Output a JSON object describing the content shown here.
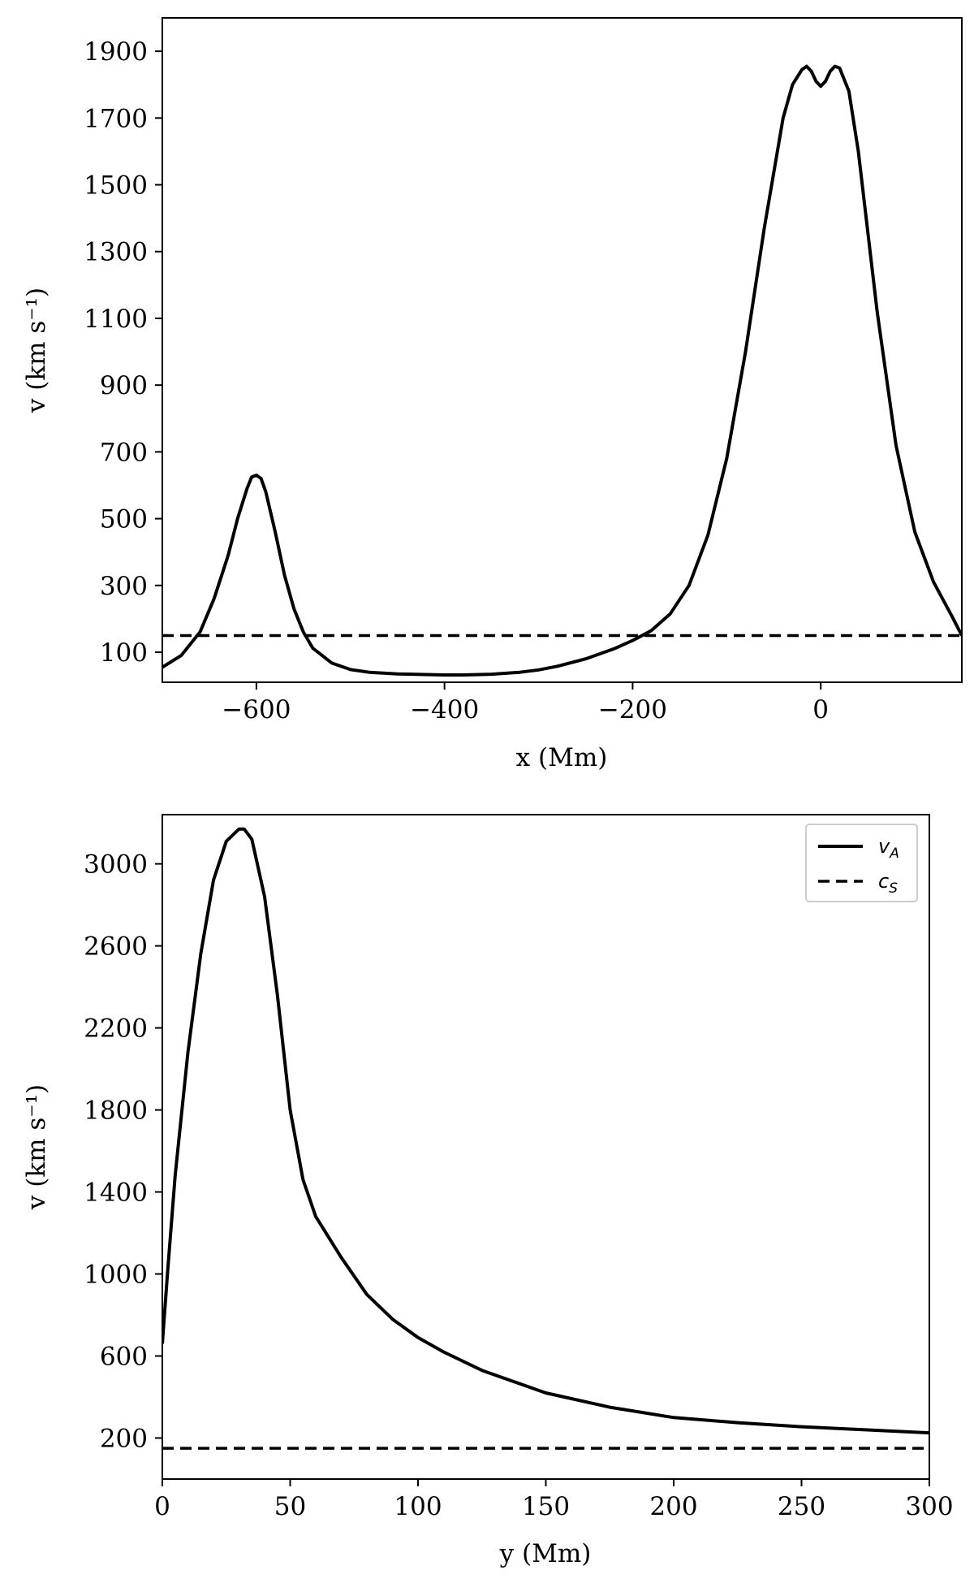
{
  "chart_data": [
    {
      "type": "line",
      "xlabel": "x (Mm)",
      "ylabel": "v (km s⁻¹)",
      "xlim": [
        -700,
        150
      ],
      "ylim": [
        10,
        2000
      ],
      "xticks": [
        -600,
        -400,
        -200,
        0
      ],
      "xtick_labels": [
        "−600",
        "−400",
        "−200",
        "0"
      ],
      "yticks": [
        100,
        300,
        500,
        700,
        900,
        1100,
        1300,
        1500,
        1700,
        1900
      ],
      "ytick_labels": [
        "100",
        "300",
        "500",
        "700",
        "900",
        "1100",
        "1300",
        "1500",
        "1700",
        "1900"
      ],
      "grid": false,
      "series": [
        {
          "style": "solid",
          "x": [
            -700,
            -680,
            -660,
            -645,
            -630,
            -620,
            -610,
            -605,
            -600,
            -595,
            -590,
            -580,
            -570,
            -560,
            -550,
            -540,
            -520,
            -500,
            -480,
            -450,
            -420,
            -400,
            -380,
            -350,
            -320,
            -300,
            -280,
            -250,
            -220,
            -200,
            -180,
            -160,
            -140,
            -120,
            -100,
            -80,
            -60,
            -40,
            -30,
            -20,
            -15,
            -10,
            -5,
            0,
            5,
            10,
            15,
            20,
            30,
            40,
            60,
            80,
            100,
            120,
            140,
            150
          ],
          "y": [
            55,
            90,
            160,
            260,
            390,
            500,
            590,
            625,
            630,
            620,
            580,
            460,
            330,
            230,
            160,
            112,
            68,
            48,
            40,
            35,
            33,
            32,
            32,
            34,
            40,
            47,
            58,
            80,
            110,
            135,
            165,
            215,
            300,
            450,
            680,
            1000,
            1370,
            1700,
            1800,
            1845,
            1855,
            1840,
            1810,
            1795,
            1810,
            1840,
            1855,
            1850,
            1780,
            1600,
            1120,
            720,
            460,
            310,
            205,
            150
          ]
        },
        {
          "style": "dashed",
          "x": [
            -700,
            150
          ],
          "y": [
            150,
            150
          ]
        }
      ]
    },
    {
      "type": "line",
      "xlabel": "y (Mm)",
      "ylabel": "v (km s⁻¹)",
      "xlim": [
        0,
        300
      ],
      "ylim": [
        0,
        3240
      ],
      "xticks": [
        0,
        50,
        100,
        150,
        200,
        250,
        300
      ],
      "xtick_labels": [
        "0",
        "50",
        "100",
        "150",
        "200",
        "250",
        "300"
      ],
      "yticks": [
        200,
        600,
        1000,
        1400,
        1800,
        2200,
        2600,
        3000
      ],
      "ytick_labels": [
        "200",
        "600",
        "1000",
        "1400",
        "1800",
        "2200",
        "2600",
        "3000"
      ],
      "grid": false,
      "legend": {
        "placement": "top-right",
        "entries": [
          {
            "label": "v",
            "sub": "A",
            "style": "solid"
          },
          {
            "label": "c",
            "sub": "S",
            "style": "dashed"
          }
        ]
      },
      "series": [
        {
          "name": "vA",
          "style": "solid",
          "x": [
            0,
            2,
            5,
            10,
            15,
            20,
            25,
            30,
            32,
            35,
            40,
            45,
            50,
            55,
            60,
            70,
            80,
            90,
            100,
            110,
            125,
            150,
            175,
            200,
            225,
            250,
            275,
            300
          ],
          "y": [
            660,
            1000,
            1480,
            2080,
            2560,
            2920,
            3110,
            3170,
            3170,
            3120,
            2840,
            2360,
            1800,
            1460,
            1280,
            1080,
            900,
            780,
            690,
            620,
            530,
            420,
            350,
            300,
            275,
            255,
            240,
            225
          ]
        },
        {
          "name": "cS",
          "style": "dashed",
          "x": [
            0,
            300
          ],
          "y": [
            150,
            150
          ]
        }
      ]
    }
  ]
}
